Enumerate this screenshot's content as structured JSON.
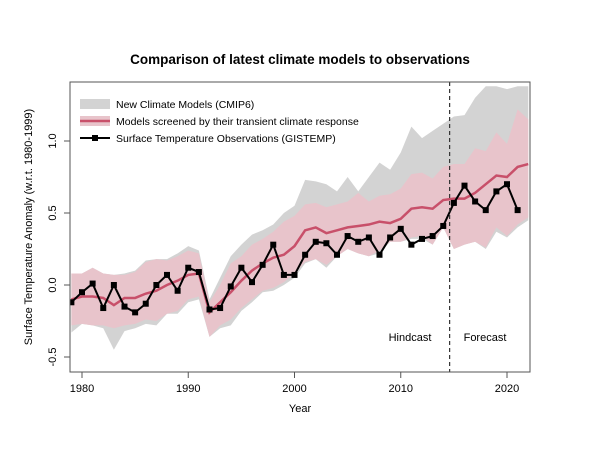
{
  "chart_data": {
    "type": "line",
    "title": "Comparison of latest climate models to observations",
    "xlabel": "Year",
    "ylabel": "Surface Temperature Anomaly (w.r.t. 1980-1999)",
    "xlim": [
      1979,
      2022
    ],
    "ylim": [
      -0.57,
      1.38
    ],
    "xticks": [
      1980,
      1990,
      2000,
      2010,
      2020
    ],
    "yticks": [
      -0.5,
      0.0,
      0.5,
      1.0
    ],
    "ytick_labels": [
      "-0.5",
      "0.0",
      "0.5",
      "1.0"
    ],
    "grid": false,
    "legend_placement": "top-left",
    "colors": {
      "cmip6": "#d3d3d3",
      "screened_band": "#e8c4cb",
      "screened_line": "#c8506a",
      "observations": "#000000"
    },
    "legend": [
      "New Climate Models (CMIP6)",
      "Models screened by their transient climate response",
      "Surface Temperature Observations (GISTEMP)"
    ],
    "annotations": {
      "divider_year": 2014.6,
      "hindcast": "Hindcast",
      "forecast": "Forecast"
    },
    "band_years": [
      1979,
      1980,
      1981,
      1982,
      1983,
      1984,
      1985,
      1986,
      1987,
      1988,
      1989,
      1990,
      1991,
      1992,
      1993,
      1994,
      1995,
      1996,
      1997,
      1998,
      1999,
      2000,
      2001,
      2002,
      2003,
      2004,
      2005,
      2006,
      2007,
      2008,
      2009,
      2010,
      2011,
      2012,
      2013,
      2014,
      2015,
      2016,
      2017,
      2018,
      2019,
      2020,
      2021,
      2022
    ],
    "cmip6_upper": [
      0.08,
      0.08,
      0.12,
      0.08,
      0.07,
      0.08,
      0.1,
      0.17,
      0.18,
      0.18,
      0.22,
      0.27,
      0.24,
      -0.1,
      0.05,
      0.2,
      0.28,
      0.35,
      0.38,
      0.42,
      0.5,
      0.55,
      0.73,
      0.72,
      0.7,
      0.65,
      0.75,
      0.65,
      0.75,
      0.85,
      0.8,
      0.92,
      1.1,
      1.02,
      1.07,
      1.12,
      1.17,
      1.18,
      1.3,
      1.38,
      1.38,
      1.36,
      1.38,
      1.38
    ],
    "cmip6_lower": [
      -0.33,
      -0.27,
      -0.28,
      -0.3,
      -0.45,
      -0.32,
      -0.3,
      -0.27,
      -0.28,
      -0.2,
      -0.2,
      -0.12,
      -0.1,
      -0.36,
      -0.3,
      -0.28,
      -0.18,
      -0.12,
      -0.05,
      -0.04,
      0.0,
      0.05,
      0.15,
      0.18,
      0.12,
      0.2,
      0.25,
      0.22,
      0.2,
      0.22,
      0.3,
      0.3,
      0.32,
      0.32,
      0.28,
      0.4,
      0.25,
      0.28,
      0.3,
      0.25,
      0.37,
      0.33,
      0.4,
      0.45
    ],
    "screened_upper": [
      0.08,
      0.08,
      0.12,
      0.08,
      0.07,
      0.07,
      0.09,
      0.16,
      0.18,
      0.17,
      0.2,
      0.24,
      0.22,
      -0.12,
      0.0,
      0.15,
      0.2,
      0.28,
      0.32,
      0.37,
      0.44,
      0.48,
      0.56,
      0.57,
      0.54,
      0.56,
      0.58,
      0.64,
      0.58,
      0.62,
      0.63,
      0.67,
      0.77,
      0.78,
      0.74,
      0.82,
      0.84,
      0.84,
      0.95,
      0.93,
      1.06,
      0.98,
      1.22,
      1.15
    ],
    "screened_lower": [
      -0.28,
      -0.27,
      -0.28,
      -0.28,
      -0.3,
      -0.28,
      -0.27,
      -0.24,
      -0.25,
      -0.2,
      -0.18,
      -0.1,
      -0.08,
      -0.36,
      -0.28,
      -0.24,
      -0.16,
      -0.1,
      -0.04,
      -0.02,
      0.02,
      0.08,
      0.16,
      0.18,
      0.14,
      0.2,
      0.25,
      0.22,
      0.2,
      0.24,
      0.3,
      0.3,
      0.33,
      0.34,
      0.28,
      0.4,
      0.25,
      0.28,
      0.3,
      0.26,
      0.4,
      0.34,
      0.42,
      0.47
    ],
    "screened_mean": [
      -0.1,
      -0.08,
      -0.08,
      -0.09,
      -0.14,
      -0.09,
      -0.09,
      -0.06,
      -0.04,
      0.0,
      0.03,
      0.07,
      0.08,
      -0.19,
      -0.12,
      -0.05,
      0.03,
      0.1,
      0.15,
      0.19,
      0.21,
      0.27,
      0.38,
      0.4,
      0.36,
      0.38,
      0.4,
      0.41,
      0.42,
      0.44,
      0.43,
      0.46,
      0.53,
      0.54,
      0.53,
      0.59,
      0.6,
      0.6,
      0.64,
      0.7,
      0.76,
      0.75,
      0.82,
      0.84
    ],
    "observations": {
      "years": [
        1979,
        1980,
        1981,
        1982,
        1983,
        1984,
        1985,
        1986,
        1987,
        1988,
        1989,
        1990,
        1991,
        1992,
        1993,
        1994,
        1995,
        1996,
        1997,
        1998,
        1999,
        2000,
        2001,
        2002,
        2003,
        2004,
        2005,
        2006,
        2007,
        2008,
        2009,
        2010,
        2011,
        2012,
        2013,
        2014,
        2015,
        2016,
        2017,
        2018,
        2019,
        2020,
        2021
      ],
      "values": [
        -0.12,
        -0.05,
        0.01,
        -0.16,
        0.0,
        -0.15,
        -0.19,
        -0.13,
        0.0,
        0.07,
        -0.04,
        0.12,
        0.09,
        -0.17,
        -0.16,
        -0.01,
        0.12,
        0.02,
        0.14,
        0.28,
        0.07,
        0.07,
        0.21,
        0.3,
        0.29,
        0.21,
        0.34,
        0.3,
        0.33,
        0.21,
        0.33,
        0.39,
        0.28,
        0.32,
        0.34,
        0.41,
        0.57,
        0.69,
        0.58,
        0.52,
        0.65,
        0.7,
        0.52
      ]
    }
  }
}
